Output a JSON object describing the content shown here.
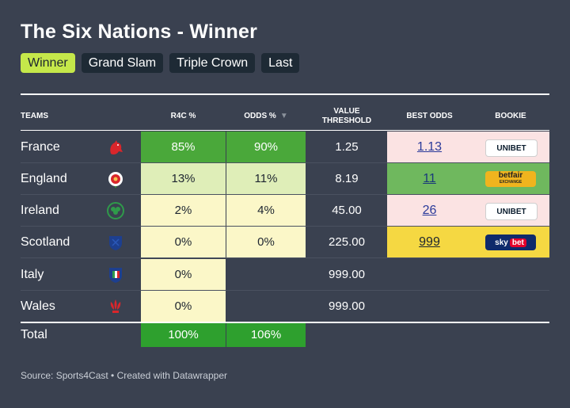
{
  "title": "The Six Nations - Winner",
  "tabs": [
    {
      "label": "Winner",
      "active": true
    },
    {
      "label": "Grand Slam",
      "active": false
    },
    {
      "label": "Triple Crown",
      "active": false
    },
    {
      "label": "Last",
      "active": false
    }
  ],
  "headers": {
    "teams": "TEAMS",
    "r4c": "R4C %",
    "odds": "ODDS %",
    "value_line1": "VALUE",
    "value_line2": "THRESHOLD",
    "best_odds": "BEST ODDS",
    "bookie": "BOOKIE"
  },
  "rows": [
    {
      "team": "France",
      "flag_icon": "france-rooster-icon",
      "r4c": "85%",
      "odds": "90%",
      "value": "1.25",
      "best_odds": "1.13",
      "bookie": "UNIBET"
    },
    {
      "team": "England",
      "flag_icon": "england-rose-icon",
      "r4c": "13%",
      "odds": "11%",
      "value": "8.19",
      "best_odds": "11",
      "bookie": "betfair"
    },
    {
      "team": "Ireland",
      "flag_icon": "ireland-shamrock-icon",
      "r4c": "2%",
      "odds": "4%",
      "value": "45.00",
      "best_odds": "26",
      "bookie": "UNIBET"
    },
    {
      "team": "Scotland",
      "flag_icon": "scotland-thistle-icon",
      "r4c": "0%",
      "odds": "0%",
      "value": "225.00",
      "best_odds": "999",
      "bookie": "skybet"
    },
    {
      "team": "Italy",
      "flag_icon": "italy-shield-icon",
      "r4c": "0%",
      "odds": "",
      "value": "999.00",
      "best_odds": "",
      "bookie": ""
    },
    {
      "team": "Wales",
      "flag_icon": "wales-feathers-icon",
      "r4c": "0%",
      "odds": "",
      "value": "999.00",
      "best_odds": "",
      "bookie": ""
    }
  ],
  "total": {
    "label": "Total",
    "r4c": "100%",
    "odds": "106%"
  },
  "bookie_logos": {
    "unibet_main": "UNIBET",
    "betfair_main": "betfair",
    "betfair_sub": "EXCHANGE",
    "sky": "sky",
    "bet": "bet"
  },
  "colors": {
    "background": "#3a4150",
    "tab_active": "#c5e84a",
    "tab_inactive": "#1e2a35",
    "heat_strong": "#4aa83a",
    "heat_mid": "#dfeeb8",
    "heat_light": "#fbf7c8",
    "best_pink": "#fbe3e3",
    "best_green": "#6fb85e",
    "best_yellow": "#f5d842",
    "total_green": "#2ea02e"
  },
  "source": "Source: Sports4Cast • Created with Datawrapper"
}
